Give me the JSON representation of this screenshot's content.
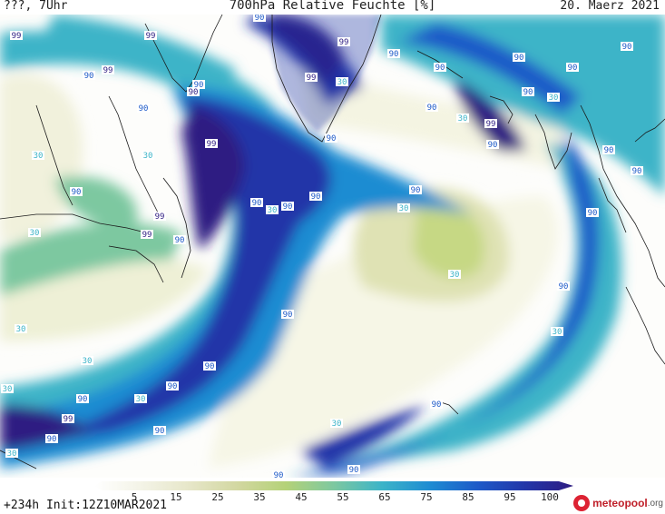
{
  "header": {
    "left": "???, 7Uhr",
    "title": "700hPa Relative Feuchte [%]",
    "date": "20. Maerz 2021"
  },
  "colors": {
    "land": "#f3f3f3",
    "coast": "#1a1a1a",
    "scale": [
      "#ffffff",
      "#f3f3e6",
      "#e6e6c8",
      "#d2d7a0",
      "#b4d278",
      "#7dc8a0",
      "#3cb4c8",
      "#1e8cd2",
      "#1e5ac8",
      "#2336a8",
      "#2d1c82"
    ]
  },
  "map": {
    "contour_labels": [
      {
        "text": "90"
      },
      {
        "text": "99"
      },
      {
        "text": "90"
      },
      {
        "text": "90"
      },
      {
        "text": "99"
      },
      {
        "text": "99"
      },
      {
        "text": "90"
      },
      {
        "text": "90"
      },
      {
        "text": "99"
      },
      {
        "text": "90"
      },
      {
        "text": "30"
      },
      {
        "text": "90"
      },
      {
        "text": "30"
      },
      {
        "text": "90"
      },
      {
        "text": "90"
      },
      {
        "text": "90"
      },
      {
        "text": "90"
      },
      {
        "text": "99"
      },
      {
        "text": "90"
      },
      {
        "text": "30"
      },
      {
        "text": "30"
      },
      {
        "text": "90"
      },
      {
        "text": "90"
      },
      {
        "text": "30"
      },
      {
        "text": "99"
      },
      {
        "text": "90"
      },
      {
        "text": "99"
      },
      {
        "text": "99"
      },
      {
        "text": "30"
      },
      {
        "text": "90"
      },
      {
        "text": "90"
      },
      {
        "text": "90"
      },
      {
        "text": "90"
      },
      {
        "text": "90"
      },
      {
        "text": "30"
      },
      {
        "text": "30"
      },
      {
        "text": "90"
      },
      {
        "text": "30"
      },
      {
        "text": "90"
      },
      {
        "text": "90"
      },
      {
        "text": "90"
      },
      {
        "text": "30"
      },
      {
        "text": "99"
      },
      {
        "text": "30"
      },
      {
        "text": "90"
      },
      {
        "text": "30"
      },
      {
        "text": "90"
      },
      {
        "text": "90"
      },
      {
        "text": "30"
      },
      {
        "text": "90"
      },
      {
        "text": "90"
      },
      {
        "text": "30"
      },
      {
        "text": "90"
      },
      {
        "text": "90"
      },
      {
        "text": "30"
      },
      {
        "text": "90"
      },
      {
        "text": "90"
      },
      {
        "text": "99"
      },
      {
        "text": "30"
      }
    ]
  },
  "colorbar": {
    "ticks": [
      "5",
      "15",
      "25",
      "35",
      "45",
      "55",
      "65",
      "75",
      "85",
      "95",
      "100"
    ]
  },
  "footer": {
    "init": "+234h Init:12Z10MAR2021",
    "brand_main": "meteopool",
    "brand_suffix": ".org"
  }
}
